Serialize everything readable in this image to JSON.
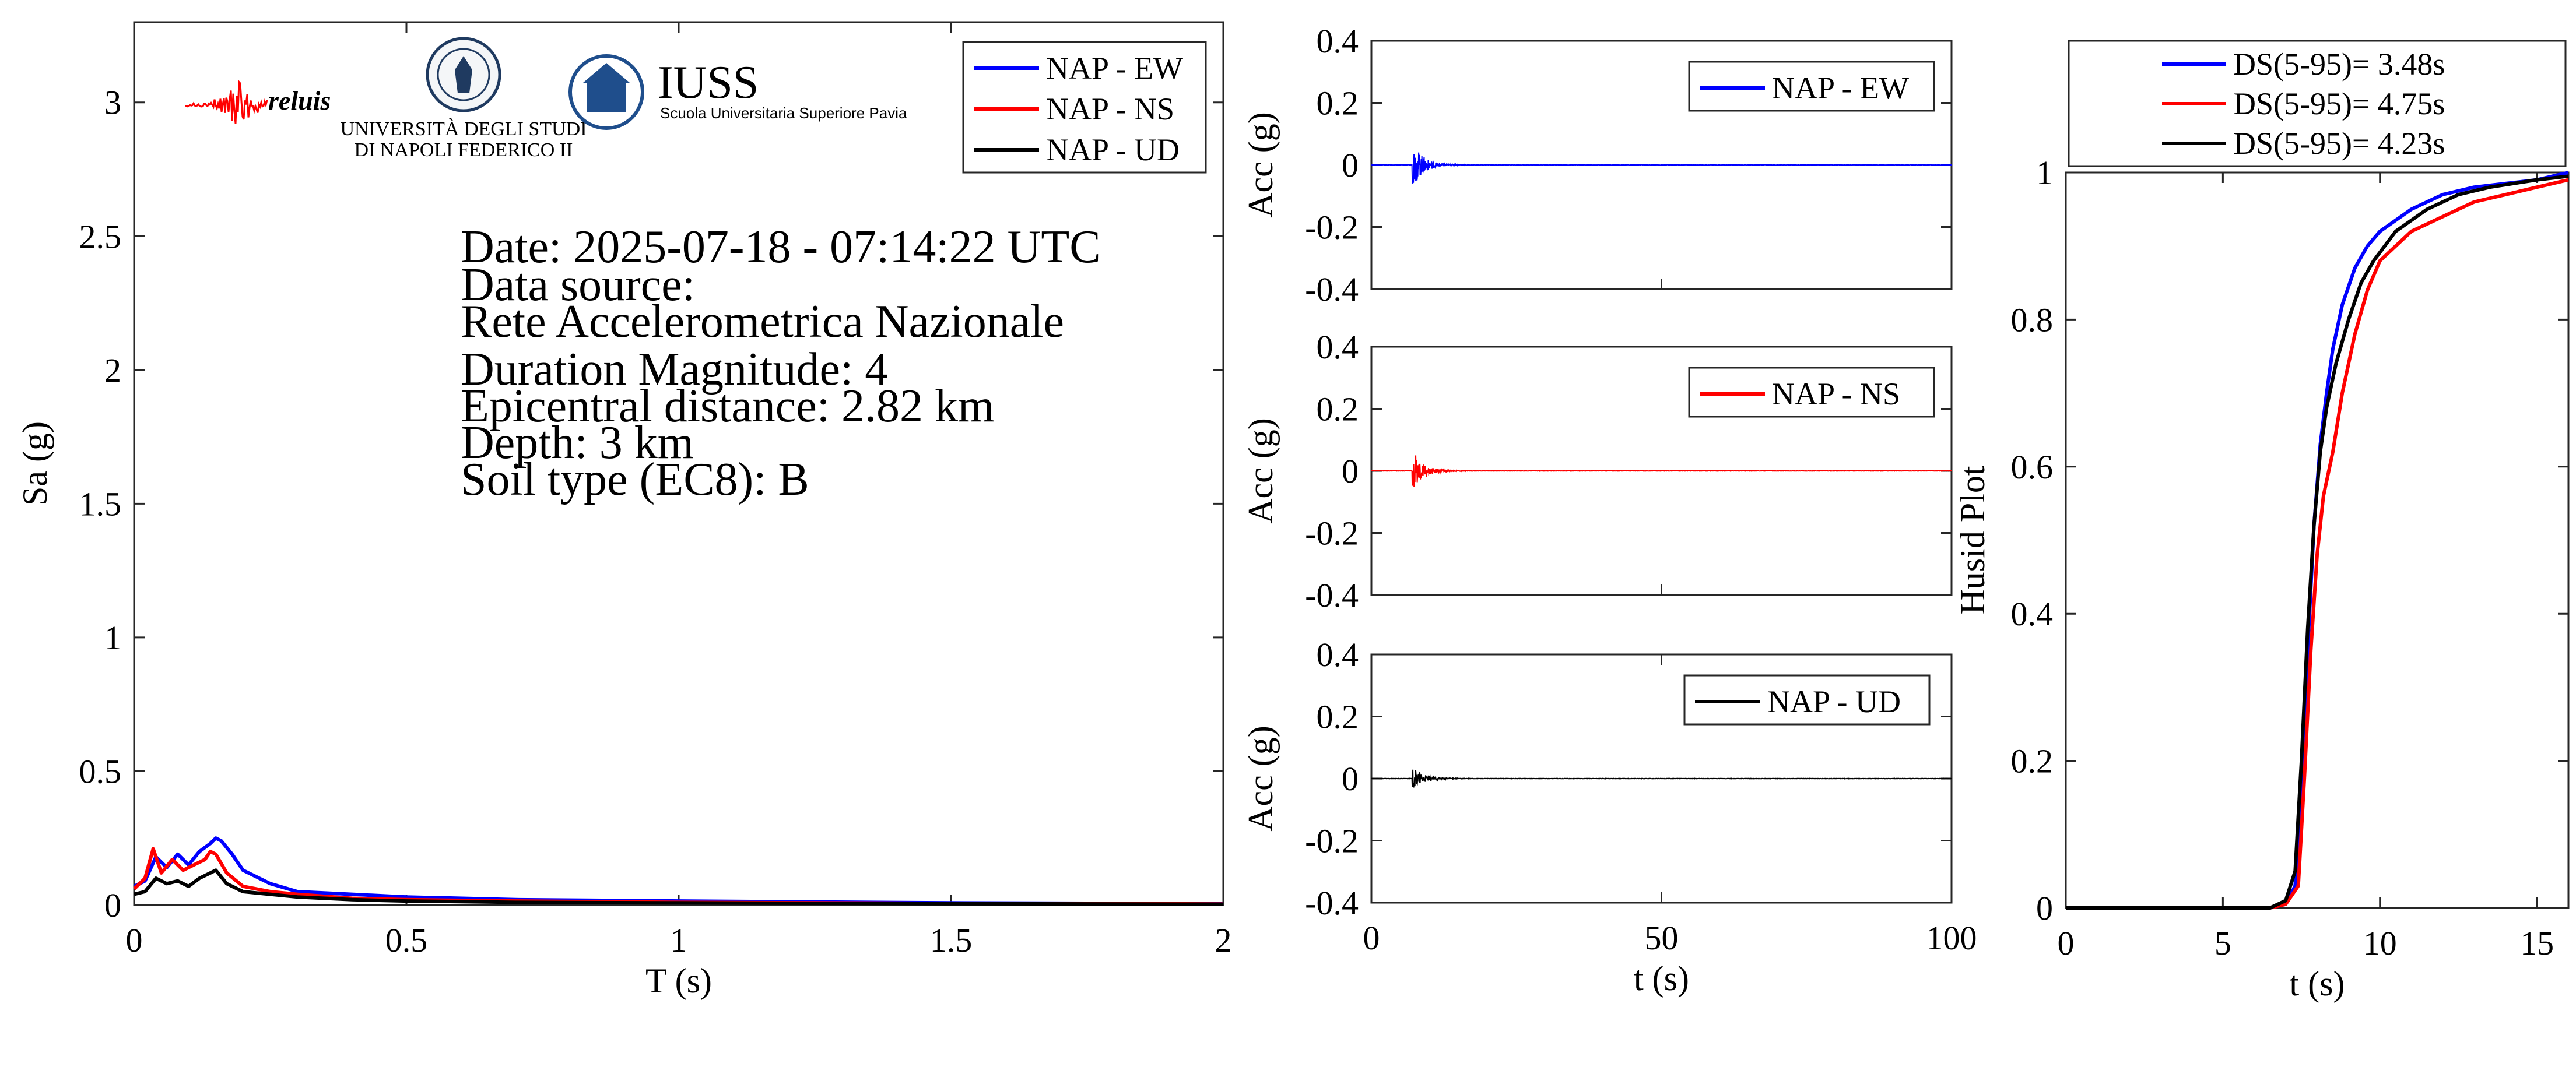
{
  "colors": {
    "ew": "#0000ff",
    "ns": "#ff0000",
    "ud": "#000000",
    "axis": "#262626",
    "iuss": "#1f4e8c"
  },
  "logos": {
    "reluis": "reluis",
    "unina_line1": "UNIVERSITÀ DEGLI STUDI",
    "unina_line2": "DI NAPOLI FEDERICO II",
    "iuss_title": "IUSS",
    "iuss_sub": "Scuola Universitaria Superiore Pavia"
  },
  "info": {
    "date": "Date: 2025-07-18 - 07:14:22 UTC",
    "source_label": "Data source:",
    "source": "Rete Accelerometrica Nazionale",
    "magnitude": "Duration Magnitude: 4",
    "distance": "Epicentral distance: 2.82 km",
    "depth": "Depth: 3 km",
    "soil": "Soil type (EC8): B"
  },
  "chart_data": [
    {
      "type": "line",
      "xlabel": "T (s)",
      "ylabel": "Sa (g)",
      "xlim": [
        0,
        2
      ],
      "ylim": [
        0,
        3.3
      ],
      "xticks": [
        0,
        0.5,
        1,
        1.5,
        2
      ],
      "xtick_labels": [
        "0",
        "0.5",
        "1",
        "1.5",
        "2"
      ],
      "yticks": [
        0,
        0.5,
        1,
        1.5,
        2,
        2.5,
        3
      ],
      "ytick_labels": [
        "0",
        "0.5",
        "1",
        "1.5",
        "2",
        "2.5",
        "3"
      ],
      "legend_position": "top-right",
      "series": [
        {
          "name": "NAP - EW",
          "color": "#0000ff",
          "x": [
            0,
            0.02,
            0.04,
            0.06,
            0.08,
            0.1,
            0.12,
            0.14,
            0.15,
            0.16,
            0.18,
            0.2,
            0.25,
            0.3,
            0.4,
            0.5,
            0.7,
            1.0,
            1.5,
            2.0
          ],
          "y": [
            0.07,
            0.09,
            0.18,
            0.14,
            0.19,
            0.15,
            0.2,
            0.23,
            0.25,
            0.24,
            0.19,
            0.13,
            0.08,
            0.05,
            0.04,
            0.03,
            0.02,
            0.015,
            0.008,
            0.005
          ]
        },
        {
          "name": "NAP - NS",
          "color": "#ff0000",
          "x": [
            0,
            0.02,
            0.035,
            0.05,
            0.07,
            0.09,
            0.11,
            0.13,
            0.14,
            0.15,
            0.17,
            0.2,
            0.25,
            0.3,
            0.4,
            0.5,
            0.7,
            1.0,
            1.5,
            2.0
          ],
          "y": [
            0.06,
            0.1,
            0.21,
            0.12,
            0.17,
            0.13,
            0.15,
            0.17,
            0.2,
            0.19,
            0.12,
            0.07,
            0.05,
            0.04,
            0.025,
            0.02,
            0.015,
            0.01,
            0.006,
            0.004
          ]
        },
        {
          "name": "NAP - UD",
          "color": "#000000",
          "x": [
            0,
            0.02,
            0.04,
            0.06,
            0.08,
            0.1,
            0.12,
            0.14,
            0.15,
            0.17,
            0.2,
            0.25,
            0.3,
            0.4,
            0.5,
            0.7,
            1.0,
            1.5,
            2.0
          ],
          "y": [
            0.04,
            0.05,
            0.1,
            0.08,
            0.09,
            0.07,
            0.1,
            0.12,
            0.13,
            0.08,
            0.05,
            0.04,
            0.03,
            0.02,
            0.015,
            0.01,
            0.008,
            0.005,
            0.003
          ]
        }
      ]
    },
    {
      "type": "line",
      "xlabel": "",
      "ylabel": "Acc (g)",
      "xlim": [
        0,
        100
      ],
      "ylim": [
        -0.4,
        0.4
      ],
      "yticks": [
        -0.4,
        -0.2,
        0,
        0.2,
        0.4
      ],
      "ytick_labels": [
        "-0.4",
        "-0.2",
        "0",
        "0.2",
        "0.4"
      ],
      "legend_position": "top-right",
      "series": [
        {
          "name": "NAP - EW",
          "color": "#0000ff",
          "peak_time_s": 7.5,
          "pga_g": 0.06
        }
      ]
    },
    {
      "type": "line",
      "xlabel": "",
      "ylabel": "Acc (g)",
      "xlim": [
        0,
        100
      ],
      "ylim": [
        -0.4,
        0.4
      ],
      "yticks": [
        -0.4,
        -0.2,
        0,
        0.2,
        0.4
      ],
      "ytick_labels": [
        "-0.4",
        "-0.2",
        "0",
        "0.2",
        "0.4"
      ],
      "legend_position": "top-right",
      "series": [
        {
          "name": "NAP - NS",
          "color": "#ff0000",
          "peak_time_s": 7.5,
          "pga_g": 0.055
        }
      ]
    },
    {
      "type": "line",
      "xlabel": "t (s)",
      "ylabel": "Acc (g)",
      "xlim": [
        0,
        100
      ],
      "ylim": [
        -0.4,
        0.4
      ],
      "xticks": [
        0,
        50,
        100
      ],
      "xtick_labels": [
        "0",
        "50",
        "100"
      ],
      "yticks": [
        -0.4,
        -0.2,
        0,
        0.2,
        0.4
      ],
      "ytick_labels": [
        "-0.4",
        "-0.2",
        "0",
        "0.2",
        "0.4"
      ],
      "legend_position": "top-right",
      "series": [
        {
          "name": "NAP - UD",
          "color": "#000000",
          "peak_time_s": 7.5,
          "pga_g": 0.03
        }
      ]
    },
    {
      "type": "line",
      "xlabel": "t (s)",
      "ylabel": "Husid Plot",
      "xlim": [
        0,
        16
      ],
      "ylim": [
        0,
        1
      ],
      "xticks": [
        0,
        5,
        10,
        15
      ],
      "xtick_labels": [
        "0",
        "5",
        "10",
        "15"
      ],
      "yticks": [
        0,
        0.2,
        0.4,
        0.6,
        0.8,
        1
      ],
      "ytick_labels": [
        "0",
        "0.2",
        "0.4",
        "0.6",
        "0.8",
        "1"
      ],
      "legend_position": "top (outside)",
      "series": [
        {
          "name": "DS(5-95)= 3.48s",
          "color": "#0000ff",
          "x": [
            0,
            6.5,
            7.0,
            7.3,
            7.5,
            7.7,
            7.9,
            8.1,
            8.3,
            8.5,
            8.8,
            9.2,
            9.6,
            10,
            11,
            12,
            13,
            14,
            15,
            16
          ],
          "y": [
            0,
            0,
            0.005,
            0.03,
            0.15,
            0.35,
            0.52,
            0.63,
            0.7,
            0.76,
            0.82,
            0.87,
            0.9,
            0.92,
            0.95,
            0.97,
            0.98,
            0.985,
            0.99,
            1.0
          ]
        },
        {
          "name": "DS(5-95)= 4.75s",
          "color": "#ff0000",
          "x": [
            0,
            6.5,
            7.0,
            7.4,
            7.6,
            7.8,
            8.0,
            8.2,
            8.5,
            8.8,
            9.2,
            9.6,
            10,
            11,
            12,
            13,
            14,
            15,
            16
          ],
          "y": [
            0,
            0,
            0.005,
            0.03,
            0.18,
            0.35,
            0.48,
            0.56,
            0.62,
            0.7,
            0.78,
            0.84,
            0.88,
            0.92,
            0.94,
            0.96,
            0.97,
            0.98,
            0.99
          ]
        },
        {
          "name": "DS(5-95)= 4.23s",
          "color": "#000000",
          "x": [
            0,
            6.5,
            7.0,
            7.3,
            7.5,
            7.7,
            7.9,
            8.1,
            8.3,
            8.6,
            9.0,
            9.4,
            9.8,
            10.5,
            11.5,
            12.5,
            13.5,
            15,
            16
          ],
          "y": [
            0,
            0,
            0.01,
            0.05,
            0.2,
            0.38,
            0.52,
            0.62,
            0.68,
            0.74,
            0.8,
            0.85,
            0.88,
            0.92,
            0.95,
            0.97,
            0.98,
            0.99,
            0.995
          ]
        }
      ]
    }
  ]
}
